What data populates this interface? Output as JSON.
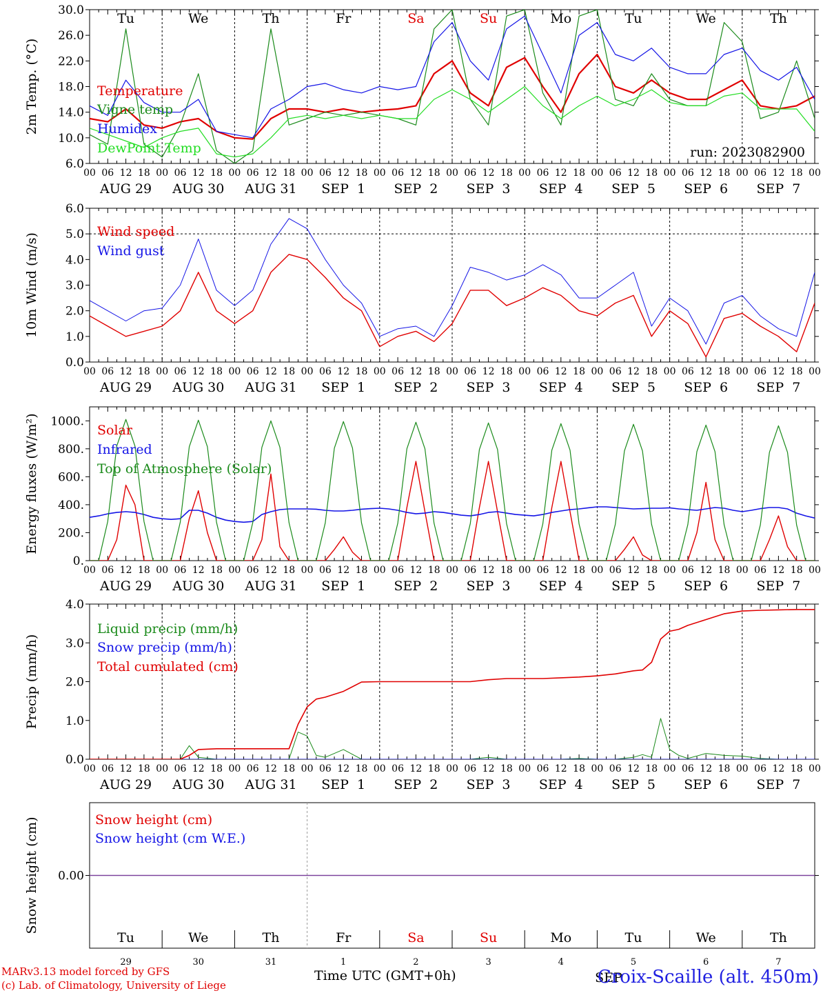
{
  "run_label": "run: 2023082900",
  "days": [
    {
      "abbr": "Tu",
      "date": "AUG 29",
      "num": "29",
      "weekend": false
    },
    {
      "abbr": "We",
      "date": "AUG 30",
      "num": "30",
      "weekend": false
    },
    {
      "abbr": "Th",
      "date": "AUG 31",
      "num": "31",
      "weekend": false
    },
    {
      "abbr": "Fr",
      "date": "SEP  1",
      "num": "1",
      "weekend": false
    },
    {
      "abbr": "Sa",
      "date": "SEP  2",
      "num": "2",
      "weekend": true
    },
    {
      "abbr": "Su",
      "date": "SEP  3",
      "num": "3",
      "weekend": true
    },
    {
      "abbr": "Mo",
      "date": "SEP  4",
      "num": "4",
      "weekend": false
    },
    {
      "abbr": "Tu",
      "date": "SEP  5",
      "num": "5",
      "weekend": false
    },
    {
      "abbr": "We",
      "date": "SEP  6",
      "num": "6",
      "weekend": false
    },
    {
      "abbr": "Th",
      "date": "SEP  7",
      "num": "7",
      "weekend": false
    }
  ],
  "hour_ticks": [
    "00",
    "06",
    "12",
    "18"
  ],
  "month_label": "SEP",
  "footer": {
    "model": "MARv3.13 model forced by GFS",
    "credit": "(c) Lab. of Climatology, University of Liege",
    "axis_title": "Time UTC (GMT+0h)",
    "station": "Croix-Scaille (alt. 450m)"
  },
  "colors": {
    "red": "#e00000",
    "green": "#1a8a1a",
    "blue": "#1414e6",
    "light_green": "#22dd22",
    "purple": "#7a3f9a"
  },
  "chart_data": [
    {
      "type": "line",
      "ylabel": "2m Temp. (°C)",
      "ylim": [
        6,
        30
      ],
      "yticks": [
        "6.0",
        "10.0",
        "14.0",
        "18.0",
        "22.0",
        "26.0",
        "30.0"
      ],
      "ytick_values": [
        6,
        10,
        14,
        18,
        22,
        26,
        30
      ],
      "dashed_hline": null,
      "show_day_names": true,
      "show_run": true,
      "x_hours": [
        0,
        6,
        12,
        18,
        24,
        30,
        36,
        42,
        48,
        54,
        60,
        66,
        72,
        78,
        84,
        90,
        96,
        102,
        108,
        114,
        120,
        126,
        132,
        138,
        144,
        150,
        156,
        162,
        168,
        174,
        180,
        186,
        192,
        198,
        204,
        210,
        216,
        222,
        228,
        234,
        240
      ],
      "series": [
        {
          "name": "Temperature",
          "color": "#e00000",
          "width": 2.2,
          "values": [
            13.0,
            12.5,
            14.5,
            12.0,
            11.5,
            12.5,
            13.0,
            11.0,
            10.0,
            9.8,
            13.0,
            14.5,
            14.5,
            14.0,
            14.5,
            14.0,
            14.3,
            14.5,
            15.0,
            20.0,
            22.0,
            17.0,
            15.0,
            21.0,
            22.5,
            18.0,
            14.0,
            20.0,
            23.0,
            18.0,
            17.0,
            19.0,
            17.0,
            16.0,
            16.0,
            17.5,
            19.0,
            15.0,
            14.5,
            15.0,
            16.5
          ]
        },
        {
          "name": "Vigne temp",
          "color": "#1a8a1a",
          "width": 1.2,
          "values": [
            10.5,
            9.0,
            27.0,
            9.0,
            7.0,
            12.0,
            20.0,
            8.0,
            6.0,
            8.0,
            27.0,
            12.0,
            13.0,
            14.0,
            13.5,
            14.0,
            13.5,
            13.0,
            12.0,
            27.0,
            30.0,
            16.0,
            12.0,
            29.0,
            30.0,
            17.0,
            12.0,
            29.0,
            30.0,
            16.0,
            15.0,
            20.0,
            16.0,
            15.0,
            15.0,
            28.0,
            25.0,
            13.0,
            14.0,
            22.0,
            13.0
          ]
        },
        {
          "name": "Humidex",
          "color": "#1414e6",
          "width": 1.2,
          "values": [
            15.0,
            13.5,
            19.0,
            15.5,
            14.0,
            14.0,
            16.0,
            11.0,
            10.5,
            10.0,
            14.5,
            16.0,
            18.0,
            18.5,
            17.5,
            17.0,
            18.0,
            17.5,
            18.0,
            25.0,
            28.0,
            22.0,
            19.0,
            27.0,
            29.0,
            23.0,
            17.0,
            26.0,
            28.0,
            23.0,
            22.0,
            24.0,
            21.0,
            20.0,
            20.0,
            23.0,
            24.0,
            20.5,
            19.0,
            21.0,
            16.0
          ]
        },
        {
          "name": "DewPoint Temp",
          "color": "#22dd22",
          "width": 1.2,
          "values": [
            11.5,
            10.5,
            9.5,
            8.5,
            10.0,
            11.0,
            11.5,
            7.5,
            7.0,
            7.5,
            10.0,
            13.0,
            13.5,
            13.0,
            13.5,
            13.0,
            13.5,
            13.0,
            13.0,
            16.0,
            17.5,
            16.0,
            14.0,
            16.0,
            18.0,
            15.0,
            13.0,
            15.0,
            16.5,
            15.0,
            16.0,
            17.5,
            15.5,
            15.0,
            15.0,
            16.5,
            17.0,
            14.5,
            14.5,
            14.5,
            11.0
          ]
        }
      ]
    },
    {
      "type": "line",
      "ylabel": "10m Wind (m/s)",
      "ylim": [
        0,
        6
      ],
      "yticks": [
        "0.0",
        "1.0",
        "2.0",
        "3.0",
        "4.0",
        "5.0",
        "6.0"
      ],
      "ytick_values": [
        0,
        1,
        2,
        3,
        4,
        5,
        6
      ],
      "dashed_hline": 5,
      "show_day_names": false,
      "show_run": false,
      "x_hours": [
        0,
        6,
        12,
        18,
        24,
        30,
        36,
        42,
        48,
        54,
        60,
        66,
        72,
        78,
        84,
        90,
        96,
        102,
        108,
        114,
        120,
        126,
        132,
        138,
        144,
        150,
        156,
        162,
        168,
        174,
        180,
        186,
        192,
        198,
        204,
        210,
        216,
        222,
        228,
        234,
        240
      ],
      "series": [
        {
          "name": "Wind speed",
          "color": "#e00000",
          "width": 1.4,
          "values": [
            1.8,
            1.4,
            1.0,
            1.2,
            1.4,
            2.0,
            3.5,
            2.0,
            1.5,
            2.0,
            3.5,
            4.2,
            4.0,
            3.3,
            2.5,
            2.0,
            0.6,
            1.0,
            1.2,
            0.8,
            1.5,
            2.8,
            2.8,
            2.2,
            2.5,
            2.9,
            2.6,
            2.0,
            1.8,
            2.3,
            2.6,
            1.0,
            2.0,
            1.5,
            0.2,
            1.7,
            1.9,
            1.4,
            1.0,
            0.4,
            2.3
          ]
        },
        {
          "name": "Wind gust",
          "color": "#1414e6",
          "width": 1.0,
          "values": [
            2.4,
            2.0,
            1.6,
            2.0,
            2.1,
            3.0,
            4.8,
            2.8,
            2.2,
            2.8,
            4.6,
            5.6,
            5.2,
            4.0,
            3.0,
            2.3,
            1.0,
            1.3,
            1.4,
            1.0,
            2.2,
            3.7,
            3.5,
            3.2,
            3.4,
            3.8,
            3.4,
            2.5,
            2.5,
            3.0,
            3.5,
            1.4,
            2.5,
            2.0,
            0.7,
            2.3,
            2.6,
            1.8,
            1.3,
            1.0,
            3.5
          ]
        }
      ]
    },
    {
      "type": "line",
      "ylabel": "Energy fluxes (W/m²)",
      "ylim": [
        0,
        1100
      ],
      "yticks": [
        "0.",
        "200.",
        "400.",
        "600.",
        "800.",
        "1000."
      ],
      "ytick_values": [
        0,
        200,
        400,
        600,
        800,
        1000
      ],
      "dashed_hline": null,
      "show_day_names": false,
      "show_run": false,
      "x_hours": [
        0,
        3,
        6,
        9,
        12,
        15,
        18,
        21,
        24,
        27,
        30,
        33,
        36,
        39,
        42,
        45,
        48,
        51,
        54,
        57,
        60,
        63,
        66,
        69,
        72,
        75,
        78,
        81,
        84,
        87,
        90,
        93,
        96,
        99,
        102,
        105,
        108,
        111,
        114,
        117,
        120,
        123,
        126,
        129,
        132,
        135,
        138,
        141,
        144,
        147,
        150,
        153,
        156,
        159,
        162,
        165,
        168,
        171,
        174,
        177,
        180,
        183,
        186,
        189,
        192,
        195,
        198,
        201,
        204,
        207,
        210,
        213,
        216,
        219,
        222,
        225,
        228,
        231,
        234,
        237,
        240
      ],
      "series": [
        {
          "name": "Solar",
          "color": "#e00000",
          "width": 1.4,
          "values": [
            0,
            0,
            0,
            150,
            540,
            400,
            0,
            0,
            0,
            0,
            0,
            300,
            500,
            200,
            0,
            0,
            0,
            0,
            0,
            150,
            620,
            100,
            0,
            0,
            0,
            0,
            0,
            80,
            170,
            60,
            0,
            0,
            0,
            0,
            0,
            380,
            710,
            350,
            0,
            0,
            0,
            0,
            0,
            380,
            710,
            350,
            0,
            0,
            0,
            0,
            0,
            380,
            710,
            350,
            0,
            0,
            0,
            0,
            0,
            80,
            170,
            40,
            0,
            0,
            0,
            0,
            0,
            200,
            560,
            150,
            0,
            0,
            0,
            0,
            0,
            150,
            320,
            100,
            0,
            0,
            0
          ]
        },
        {
          "name": "Infrared",
          "color": "#1414e6",
          "width": 1.6,
          "values": [
            310,
            320,
            335,
            345,
            350,
            345,
            330,
            310,
            300,
            295,
            300,
            360,
            360,
            340,
            310,
            290,
            280,
            275,
            280,
            330,
            350,
            365,
            370,
            370,
            370,
            368,
            360,
            355,
            355,
            360,
            368,
            372,
            375,
            370,
            360,
            345,
            335,
            340,
            350,
            345,
            335,
            325,
            320,
            330,
            345,
            350,
            340,
            330,
            325,
            320,
            330,
            345,
            355,
            365,
            370,
            378,
            385,
            385,
            380,
            375,
            370,
            372,
            375,
            375,
            378,
            370,
            365,
            360,
            370,
            380,
            375,
            360,
            350,
            360,
            372,
            380,
            380,
            370,
            340,
            320,
            305
          ]
        },
        {
          "name": "Top of Atmosphere (Solar)",
          "color": "#1a8a1a",
          "width": 1.2,
          "values": [
            0,
            0,
            280,
            820,
            1010,
            820,
            280,
            0,
            0,
            0,
            275,
            815,
            1005,
            815,
            275,
            0,
            0,
            0,
            272,
            810,
            1000,
            810,
            272,
            0,
            0,
            0,
            270,
            805,
            995,
            805,
            270,
            0,
            0,
            0,
            268,
            800,
            990,
            800,
            268,
            0,
            0,
            0,
            265,
            795,
            985,
            795,
            265,
            0,
            0,
            0,
            262,
            790,
            980,
            790,
            262,
            0,
            0,
            0,
            260,
            785,
            975,
            785,
            260,
            0,
            0,
            0,
            258,
            780,
            970,
            780,
            258,
            0,
            0,
            0,
            255,
            775,
            965,
            775,
            255,
            0,
            0
          ]
        }
      ]
    },
    {
      "type": "line",
      "ylabel": "Precip (mm/h)",
      "ylim": [
        0,
        4
      ],
      "yticks": [
        "0.0",
        "1.0",
        "2.0",
        "3.0",
        "4.0"
      ],
      "ytick_values": [
        0,
        1,
        2,
        3,
        4
      ],
      "dashed_hline": null,
      "show_day_names": false,
      "show_run": false,
      "x_hours": [
        0,
        6,
        12,
        18,
        24,
        30,
        33,
        36,
        42,
        48,
        54,
        60,
        66,
        69,
        72,
        75,
        78,
        84,
        90,
        96,
        102,
        108,
        114,
        120,
        126,
        132,
        138,
        144,
        150,
        156,
        162,
        168,
        174,
        180,
        183,
        186,
        189,
        192,
        195,
        198,
        204,
        210,
        216,
        222,
        228,
        234,
        240
      ],
      "series": [
        {
          "name": "Liquid precip (mm/h)",
          "color": "#1a8a1a",
          "width": 1.0,
          "values": [
            0,
            0,
            0,
            0,
            0,
            0,
            0.35,
            0.05,
            0,
            0,
            0,
            0,
            0,
            0.7,
            0.6,
            0.1,
            0.05,
            0.25,
            0,
            0,
            0,
            0,
            0,
            0,
            0,
            0.05,
            0,
            0,
            0,
            0,
            0.02,
            0,
            0,
            0.05,
            0.12,
            0.05,
            1.05,
            0.25,
            0.1,
            0.02,
            0.15,
            0.1,
            0.08,
            0.02,
            0,
            0,
            0
          ]
        },
        {
          "name": "Snow precip (mm/h)",
          "color": "#1414e6",
          "width": 1.0,
          "values": [
            0,
            0,
            0,
            0,
            0,
            0,
            0,
            0,
            0,
            0,
            0,
            0,
            0,
            0,
            0,
            0,
            0,
            0,
            0,
            0,
            0,
            0,
            0,
            0,
            0,
            0,
            0,
            0,
            0,
            0,
            0,
            0,
            0,
            0,
            0,
            0,
            0,
            0,
            0,
            0,
            0,
            0,
            0,
            0,
            0,
            0,
            0
          ]
        },
        {
          "name": "Total cumulated (cm)",
          "color": "#e00000",
          "width": 1.6,
          "values": [
            0,
            0,
            0,
            0,
            0,
            0,
            0.1,
            0.25,
            0.27,
            0.27,
            0.27,
            0.27,
            0.27,
            0.9,
            1.35,
            1.55,
            1.6,
            1.75,
            1.99,
            2.0,
            2.0,
            2.0,
            2.0,
            2.0,
            2.0,
            2.05,
            2.08,
            2.08,
            2.08,
            2.1,
            2.12,
            2.15,
            2.2,
            2.28,
            2.3,
            2.5,
            3.1,
            3.3,
            3.35,
            3.45,
            3.6,
            3.75,
            3.82,
            3.84,
            3.85,
            3.86,
            3.86
          ]
        }
      ]
    },
    {
      "type": "line",
      "ylabel": "Snow height (cm)",
      "ylim": [
        -1,
        1
      ],
      "yticks": [
        "0.00"
      ],
      "ytick_values": [
        0
      ],
      "dashed_hline": null,
      "show_day_names": false,
      "show_run": false,
      "x_hours": [
        0,
        240
      ],
      "series": [
        {
          "name": "Snow height (cm)",
          "color": "#e00000",
          "width": 1.2,
          "values": [
            0,
            0
          ]
        },
        {
          "name": "Snow height (cm W.E.)",
          "color": "#1414e6",
          "width": 1.2,
          "values": [
            0,
            0
          ]
        }
      ]
    }
  ]
}
